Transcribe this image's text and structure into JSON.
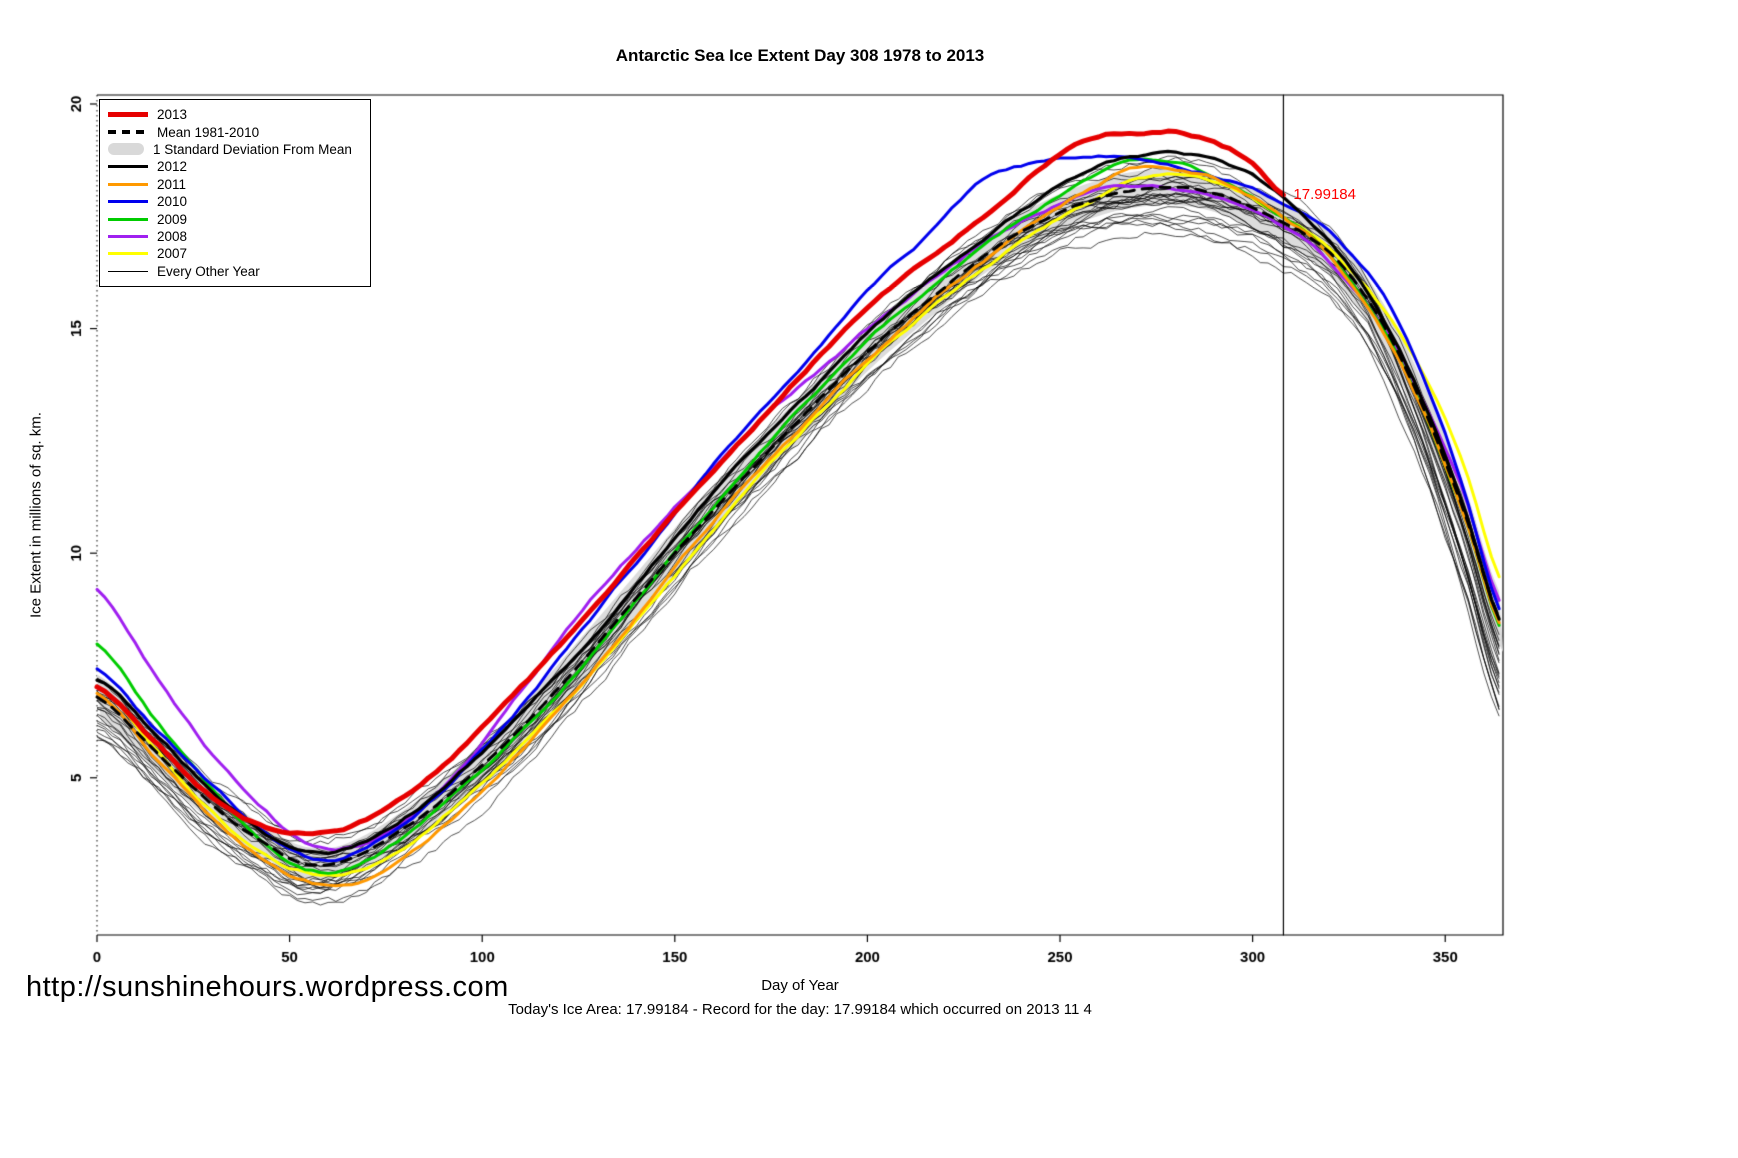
{
  "chart_data": {
    "type": "line",
    "title": "Antarctic Sea Ice Extent Day 308 1978 to 2013",
    "xlabel": "Day of Year",
    "ylabel": "Ice Extent in millions of sq. km.",
    "xlim": [
      0,
      365
    ],
    "ylim": [
      1.5,
      20.2
    ],
    "x_ticks": [
      0,
      50,
      100,
      150,
      200,
      250,
      300,
      350
    ],
    "y_ticks": [
      5,
      10,
      15,
      20
    ],
    "grid": false,
    "legend_position": "top-left",
    "marker_day": 308,
    "annotation": {
      "text": "17.99184",
      "day": 308,
      "value": 17.99184,
      "color": "#ff0000"
    },
    "control_days": [
      0,
      15,
      30,
      45,
      55,
      65,
      80,
      95,
      110,
      125,
      140,
      155,
      170,
      185,
      200,
      215,
      230,
      245,
      260,
      270,
      280,
      290,
      300,
      308,
      315,
      325,
      335,
      345,
      355,
      365
    ],
    "mean": {
      "name": "Mean 1981-2010",
      "color": "#000000",
      "values": [
        6.8,
        5.6,
        4.4,
        3.5,
        3.1,
        3.2,
        3.9,
        4.9,
        6.1,
        7.5,
        9.0,
        10.5,
        11.9,
        13.2,
        14.5,
        15.6,
        16.6,
        17.4,
        17.9,
        18.1,
        18.15,
        18.0,
        17.7,
        17.35,
        17.0,
        16.2,
        14.9,
        13.1,
        10.9,
        8.4
      ],
      "sd": [
        0.5,
        0.45,
        0.4,
        0.35,
        0.35,
        0.35,
        0.4,
        0.45,
        0.5,
        0.55,
        0.55,
        0.55,
        0.5,
        0.5,
        0.45,
        0.45,
        0.4,
        0.4,
        0.4,
        0.4,
        0.4,
        0.4,
        0.45,
        0.45,
        0.45,
        0.5,
        0.5,
        0.55,
        0.6,
        0.6
      ],
      "band_color": "#dcdcdc"
    },
    "series": [
      {
        "name": "2013",
        "color": "#e60000",
        "width": 5,
        "values": [
          7.0,
          5.8,
          4.6,
          3.9,
          3.8,
          3.9,
          4.6,
          5.7,
          7.0,
          8.4,
          9.9,
          11.4,
          12.8,
          14.2,
          15.5,
          16.5,
          17.5,
          18.6,
          19.3,
          19.35,
          19.4,
          19.15,
          18.7,
          17.99184,
          null,
          null,
          null,
          null,
          null,
          null
        ]
      },
      {
        "name": "2012",
        "color": "#000000",
        "width": 3.2,
        "values": [
          7.2,
          6.0,
          4.7,
          3.7,
          3.3,
          3.4,
          4.1,
          5.2,
          6.4,
          7.8,
          9.3,
          10.9,
          12.3,
          13.6,
          14.9,
          16.0,
          17.0,
          17.9,
          18.6,
          18.85,
          18.9,
          18.75,
          18.4,
          17.9,
          17.4,
          16.4,
          15.0,
          13.2,
          11.0,
          8.4
        ]
      },
      {
        "name": "2011",
        "color": "#ff9900",
        "width": 3,
        "values": [
          6.9,
          5.5,
          4.1,
          3.1,
          2.7,
          2.6,
          3.2,
          4.3,
          5.6,
          7.0,
          8.6,
          10.2,
          11.7,
          13.0,
          14.3,
          15.5,
          16.5,
          17.5,
          18.2,
          18.55,
          18.5,
          18.3,
          17.9,
          17.45,
          17.0,
          16.0,
          14.7,
          13.0,
          10.8,
          8.3
        ]
      },
      {
        "name": "2010",
        "color": "#0000ee",
        "width": 3,
        "values": [
          7.4,
          6.1,
          4.8,
          3.7,
          3.2,
          3.3,
          4.0,
          5.2,
          6.6,
          8.2,
          9.8,
          11.4,
          12.9,
          14.3,
          15.8,
          17.0,
          18.3,
          18.7,
          18.8,
          18.8,
          18.65,
          18.45,
          18.2,
          17.85,
          17.5,
          16.7,
          15.6,
          13.8,
          11.4,
          8.6
        ]
      },
      {
        "name": "2009",
        "color": "#00cc00",
        "width": 3,
        "values": [
          8.0,
          6.3,
          4.7,
          3.5,
          3.0,
          3.0,
          3.7,
          4.8,
          6.0,
          7.4,
          8.9,
          10.5,
          12.0,
          13.4,
          14.7,
          15.8,
          16.8,
          17.7,
          18.4,
          18.75,
          18.7,
          18.4,
          18.0,
          17.55,
          17.1,
          16.1,
          14.8,
          13.0,
          10.8,
          8.2
        ]
      },
      {
        "name": "2008",
        "color": "#a020f0",
        "width": 3,
        "values": [
          9.2,
          7.3,
          5.5,
          4.2,
          3.5,
          3.4,
          4.0,
          5.3,
          6.9,
          8.6,
          10.1,
          11.5,
          12.8,
          13.9,
          15.0,
          16.0,
          16.9,
          17.6,
          18.1,
          18.2,
          18.1,
          17.9,
          17.6,
          17.25,
          16.9,
          16.0,
          14.9,
          13.3,
          11.3,
          8.8
        ]
      },
      {
        "name": "2007",
        "color": "#ffff00",
        "width": 3,
        "values": [
          7.0,
          5.6,
          4.2,
          3.2,
          2.9,
          2.9,
          3.5,
          4.5,
          5.7,
          7.0,
          8.5,
          10.0,
          11.5,
          12.9,
          14.2,
          15.3,
          16.3,
          17.2,
          17.9,
          18.3,
          18.4,
          18.25,
          17.9,
          17.5,
          17.1,
          16.3,
          15.3,
          13.9,
          11.9,
          9.3
        ]
      }
    ],
    "other_years": {
      "label": "Every Other Year",
      "count": 26,
      "color": "#000000"
    }
  },
  "legend": {
    "items": [
      {
        "label": "2013",
        "color": "#e60000",
        "style": "thick"
      },
      {
        "label": "Mean 1981-2010",
        "color": "#000000",
        "style": "dash"
      },
      {
        "label": "1 Standard Deviation From Mean",
        "color": "#d9d9d9",
        "style": "band"
      },
      {
        "label": "2012",
        "color": "#000000",
        "style": "line"
      },
      {
        "label": "2011",
        "color": "#ff9900",
        "style": "line"
      },
      {
        "label": "2010",
        "color": "#0000ee",
        "style": "line"
      },
      {
        "label": "2009",
        "color": "#00cc00",
        "style": "line"
      },
      {
        "label": "2008",
        "color": "#a020f0",
        "style": "line"
      },
      {
        "label": "2007",
        "color": "#ffff00",
        "style": "line"
      },
      {
        "label": "Every Other Year",
        "color": "#000000",
        "style": "thin"
      }
    ]
  },
  "footer": {
    "url": "http://sunshinehours.wordpress.com",
    "note": "Today's Ice Area: 17.99184  - Record for the day: 17.99184 which occurred on 2013 11 4"
  }
}
